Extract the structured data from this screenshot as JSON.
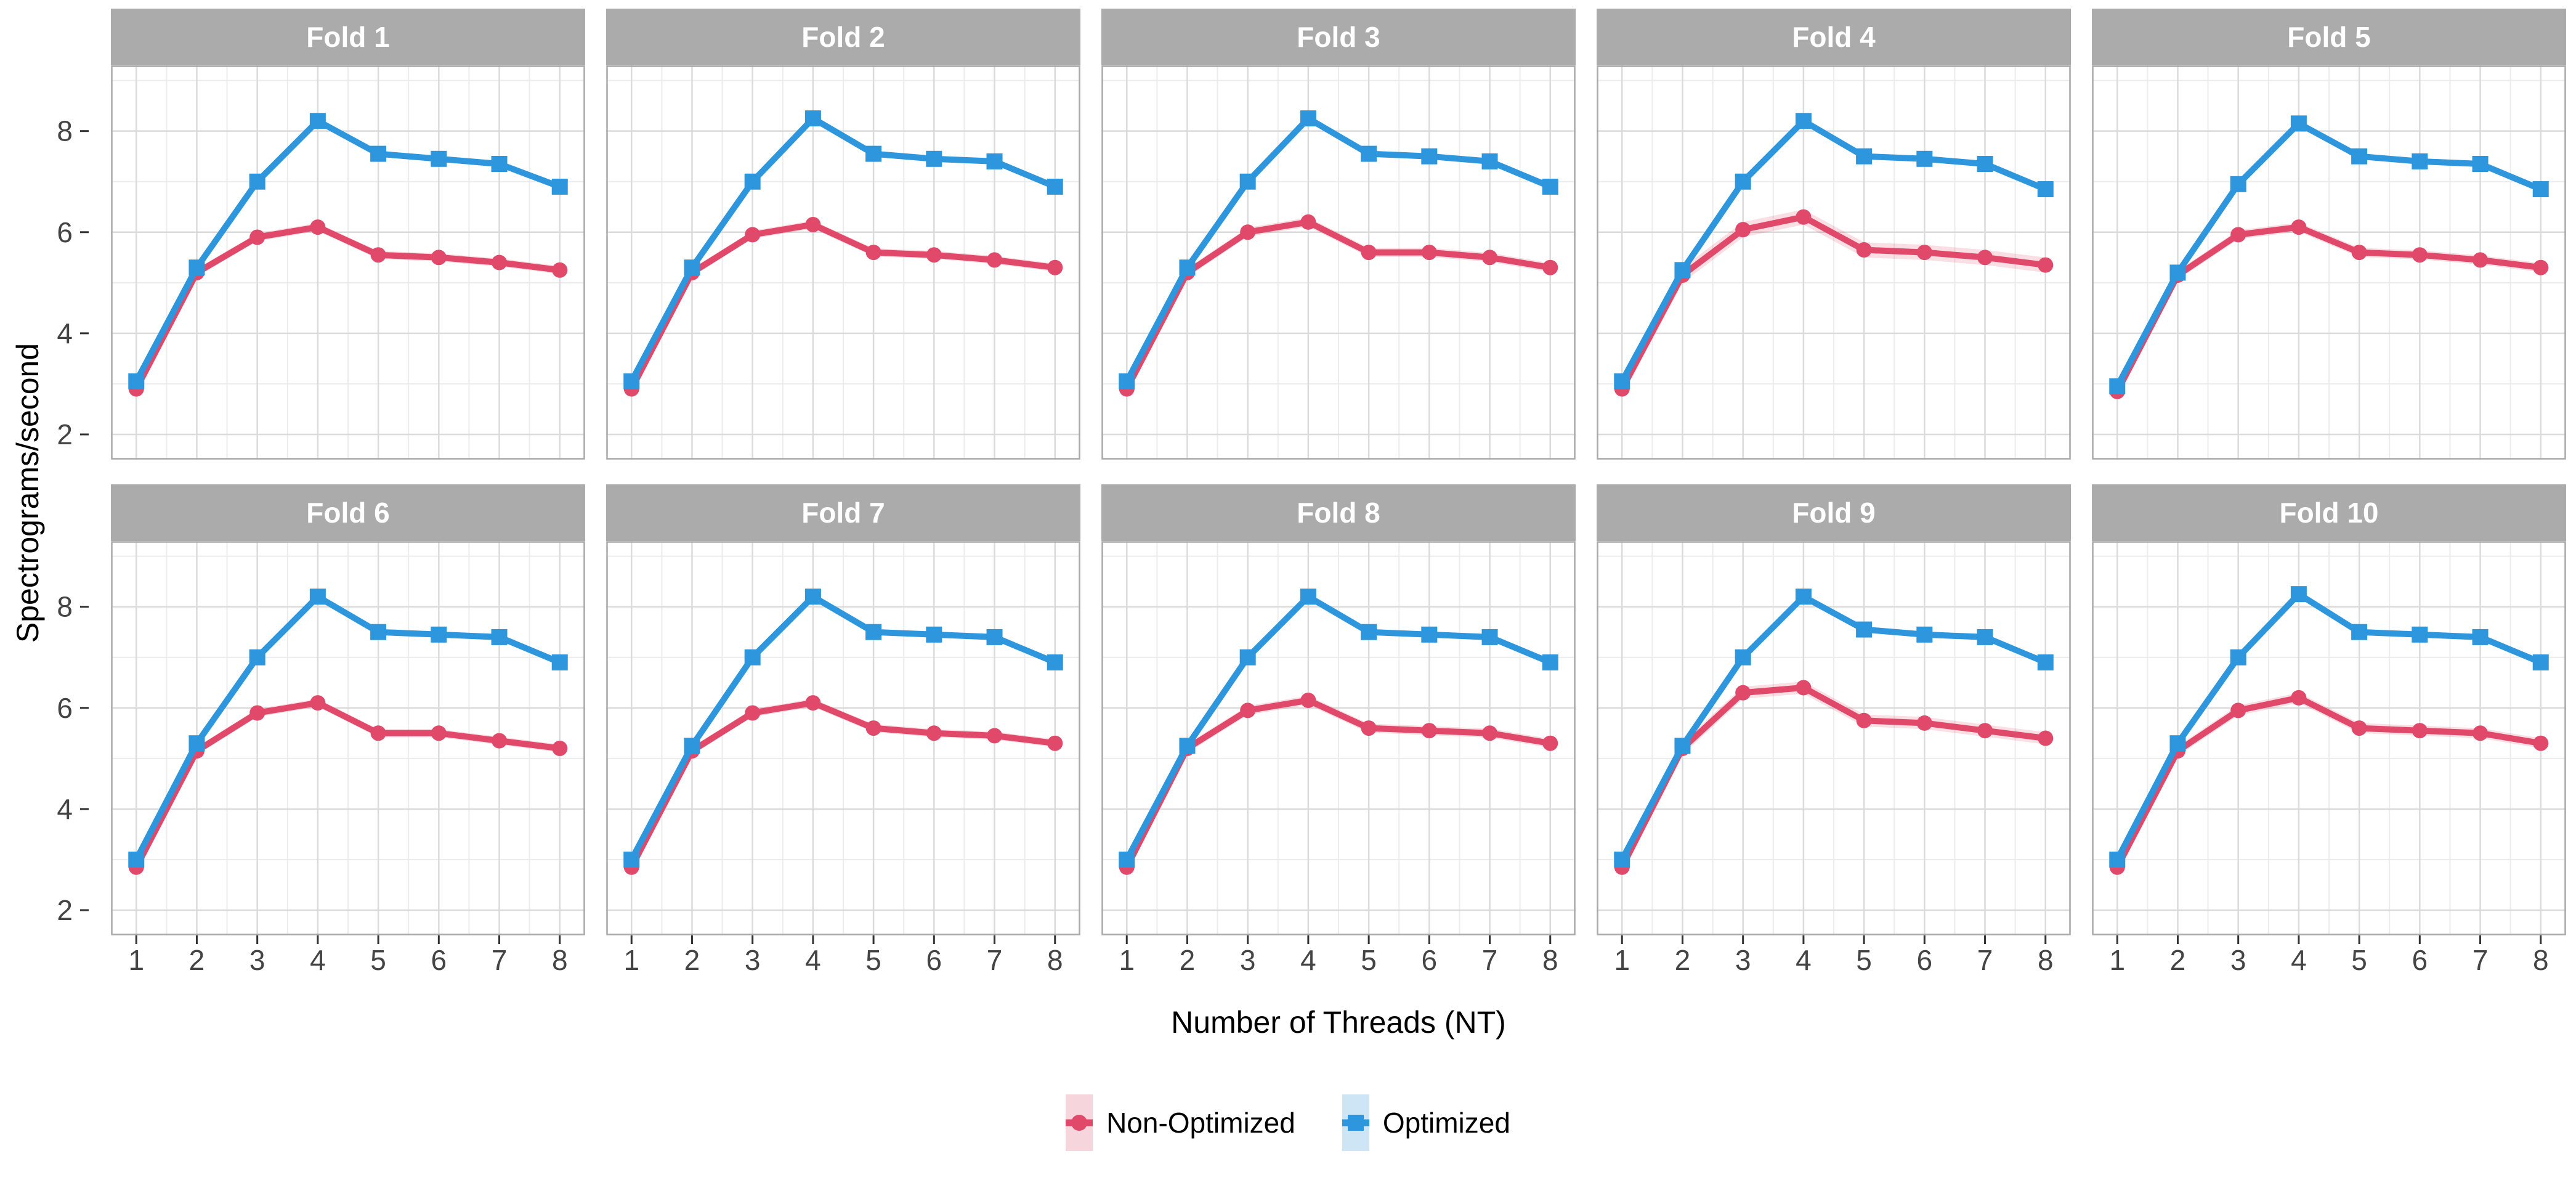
{
  "axes": {
    "x_title": "Number of Threads (NT)",
    "y_title": "Spectrograms/second"
  },
  "colors": {
    "strip_background": "#ABABAB",
    "strip_text": "#FFFFFF",
    "panel_border": "#A9A9A9",
    "grid_major": "#DBDBDB",
    "grid_minor": "#ECECEC",
    "tick_text": "#444444",
    "tick_mark": "#333333",
    "non_optimized": "#E0496A",
    "optimized": "#2E96DC",
    "non_optimized_key_bg": "#F6D5DC",
    "optimized_key_bg": "#CEE5F5"
  },
  "chart_data": {
    "type": "line",
    "title": "",
    "xlabel": "Number of Threads (NT)",
    "ylabel": "Spectrograms/second",
    "x": [
      1,
      2,
      3,
      4,
      5,
      6,
      7,
      8
    ],
    "x_ticks": [
      1,
      2,
      3,
      4,
      5,
      6,
      7,
      8
    ],
    "y_ticks": [
      2,
      4,
      6,
      8
    ],
    "xlim": [
      0.58,
      8.42
    ],
    "ylim": [
      1.5,
      9.3
    ],
    "grid": "major+minor",
    "legend_position": "bottom",
    "facet_layout": {
      "rows": 2,
      "cols": 5
    },
    "series_meta": [
      {
        "id": "non_optimized",
        "label": "Non-Optimized",
        "marker": "circle",
        "color": "#E0496A",
        "key_bg": "#F6D5DC"
      },
      {
        "id": "optimized",
        "label": "Optimized",
        "marker": "square",
        "color": "#2E96DC",
        "key_bg": "#CEE5F5"
      }
    ],
    "facets": [
      {
        "name": "Fold 1",
        "non_optimized": [
          2.9,
          5.2,
          5.9,
          6.1,
          5.55,
          5.5,
          5.4,
          5.25
        ],
        "optimized": [
          3.05,
          5.3,
          7.0,
          8.2,
          7.55,
          7.45,
          7.35,
          6.9
        ],
        "ribbon": 0.08
      },
      {
        "name": "Fold 2",
        "non_optimized": [
          2.9,
          5.2,
          5.95,
          6.15,
          5.6,
          5.55,
          5.45,
          5.3
        ],
        "optimized": [
          3.05,
          5.3,
          7.0,
          8.25,
          7.55,
          7.45,
          7.4,
          6.9
        ],
        "ribbon": 0.08
      },
      {
        "name": "Fold 3",
        "non_optimized": [
          2.9,
          5.2,
          6.0,
          6.2,
          5.6,
          5.6,
          5.5,
          5.3
        ],
        "optimized": [
          3.05,
          5.3,
          7.0,
          8.25,
          7.55,
          7.5,
          7.4,
          6.9
        ],
        "ribbon": 0.09
      },
      {
        "name": "Fold 4",
        "non_optimized": [
          2.9,
          5.15,
          6.05,
          6.3,
          5.65,
          5.6,
          5.5,
          5.35
        ],
        "optimized": [
          3.05,
          5.25,
          7.0,
          8.2,
          7.5,
          7.45,
          7.35,
          6.85
        ],
        "ribbon": 0.15
      },
      {
        "name": "Fold 5",
        "non_optimized": [
          2.85,
          5.15,
          5.95,
          6.1,
          5.6,
          5.55,
          5.45,
          5.3
        ],
        "optimized": [
          2.95,
          5.2,
          6.95,
          8.15,
          7.5,
          7.4,
          7.35,
          6.85
        ],
        "ribbon": 0.09
      },
      {
        "name": "Fold 6",
        "non_optimized": [
          2.85,
          5.15,
          5.9,
          6.1,
          5.5,
          5.5,
          5.35,
          5.2
        ],
        "optimized": [
          3.0,
          5.3,
          7.0,
          8.2,
          7.5,
          7.45,
          7.4,
          6.9
        ],
        "ribbon": 0.08
      },
      {
        "name": "Fold 7",
        "non_optimized": [
          2.85,
          5.15,
          5.9,
          6.1,
          5.6,
          5.5,
          5.45,
          5.3
        ],
        "optimized": [
          3.0,
          5.25,
          7.0,
          8.2,
          7.5,
          7.45,
          7.4,
          6.9
        ],
        "ribbon": 0.08
      },
      {
        "name": "Fold 8",
        "non_optimized": [
          2.85,
          5.2,
          5.95,
          6.15,
          5.6,
          5.55,
          5.5,
          5.3
        ],
        "optimized": [
          3.0,
          5.25,
          7.0,
          8.2,
          7.5,
          7.45,
          7.4,
          6.9
        ],
        "ribbon": 0.09
      },
      {
        "name": "Fold 9",
        "non_optimized": [
          2.85,
          5.2,
          6.3,
          6.4,
          5.75,
          5.7,
          5.55,
          5.4
        ],
        "optimized": [
          3.0,
          5.25,
          7.0,
          8.2,
          7.55,
          7.45,
          7.4,
          6.9
        ],
        "ribbon": 0.12
      },
      {
        "name": "Fold 10",
        "non_optimized": [
          2.85,
          5.15,
          5.95,
          6.2,
          5.6,
          5.55,
          5.5,
          5.3
        ],
        "optimized": [
          3.0,
          5.3,
          7.0,
          8.25,
          7.5,
          7.45,
          7.4,
          6.9
        ],
        "ribbon": 0.1
      }
    ]
  }
}
